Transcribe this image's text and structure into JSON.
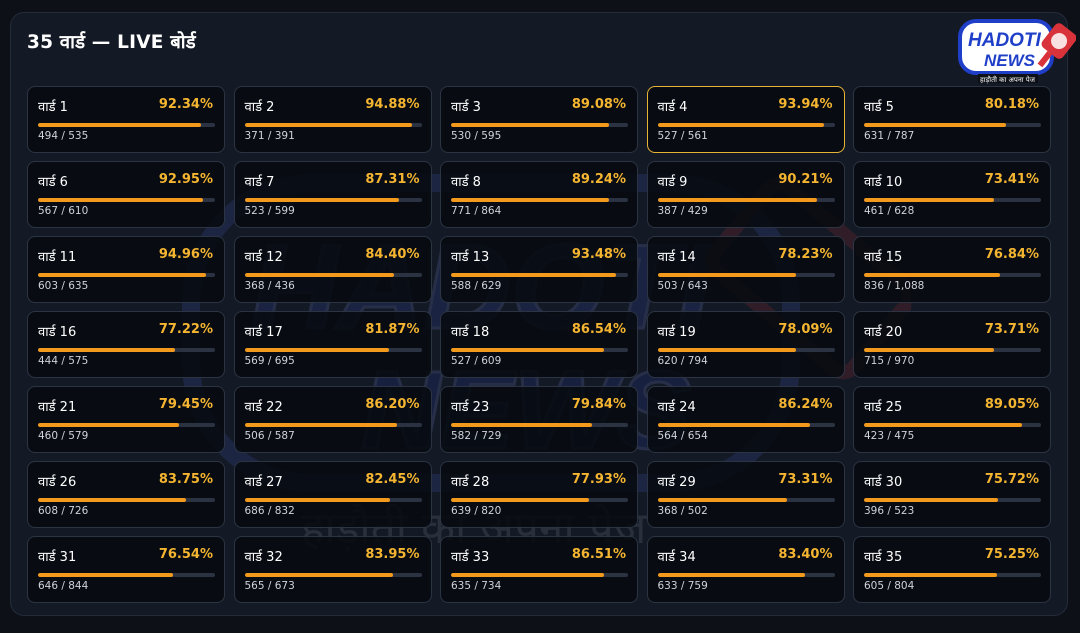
{
  "header": {
    "title": "35 वार्ड — LIVE बोर्ड"
  },
  "logo": {
    "name_line1": "HADOTI",
    "name_line2": "NEWS",
    "tagline": "हाड़ौती का अपना पेज"
  },
  "watermark": {
    "line1": "HADOTI",
    "line2": "NEWS",
    "tagline": "हाड़ौती का अपना पेज"
  },
  "colors": {
    "accent": "#f5b531",
    "bar_fill": "#f39a1c",
    "selected_border": "#e8b436"
  },
  "selected_ward": "वार्ड 4",
  "wards": [
    {
      "name": "वार्ड 1",
      "percent": "92.34%",
      "votes": "494 / 535",
      "fill": 0.9234
    },
    {
      "name": "वार्ड 2",
      "percent": "94.88%",
      "votes": "371 / 391",
      "fill": 0.9488
    },
    {
      "name": "वार्ड 3",
      "percent": "89.08%",
      "votes": "530 / 595",
      "fill": 0.8908
    },
    {
      "name": "वार्ड 4",
      "percent": "93.94%",
      "votes": "527 / 561",
      "fill": 0.9394
    },
    {
      "name": "वार्ड 5",
      "percent": "80.18%",
      "votes": "631 / 787",
      "fill": 0.8018
    },
    {
      "name": "वार्ड 6",
      "percent": "92.95%",
      "votes": "567 / 610",
      "fill": 0.9295
    },
    {
      "name": "वार्ड 7",
      "percent": "87.31%",
      "votes": "523 / 599",
      "fill": 0.8731
    },
    {
      "name": "वार्ड 8",
      "percent": "89.24%",
      "votes": "771 / 864",
      "fill": 0.8924
    },
    {
      "name": "वार्ड 9",
      "percent": "90.21%",
      "votes": "387 / 429",
      "fill": 0.9021
    },
    {
      "name": "वार्ड 10",
      "percent": "73.41%",
      "votes": "461 / 628",
      "fill": 0.7341
    },
    {
      "name": "वार्ड 11",
      "percent": "94.96%",
      "votes": "603 / 635",
      "fill": 0.9496
    },
    {
      "name": "वार्ड 12",
      "percent": "84.40%",
      "votes": "368 / 436",
      "fill": 0.844
    },
    {
      "name": "वार्ड 13",
      "percent": "93.48%",
      "votes": "588 / 629",
      "fill": 0.9348
    },
    {
      "name": "वार्ड 14",
      "percent": "78.23%",
      "votes": "503 / 643",
      "fill": 0.7823
    },
    {
      "name": "वार्ड 15",
      "percent": "76.84%",
      "votes": "836 / 1,088",
      "fill": 0.7684
    },
    {
      "name": "वार्ड 16",
      "percent": "77.22%",
      "votes": "444 / 575",
      "fill": 0.7722
    },
    {
      "name": "वार्ड 17",
      "percent": "81.87%",
      "votes": "569 / 695",
      "fill": 0.8187
    },
    {
      "name": "वार्ड 18",
      "percent": "86.54%",
      "votes": "527 / 609",
      "fill": 0.8654
    },
    {
      "name": "वार्ड 19",
      "percent": "78.09%",
      "votes": "620 / 794",
      "fill": 0.7809
    },
    {
      "name": "वार्ड 20",
      "percent": "73.71%",
      "votes": "715 / 970",
      "fill": 0.7371
    },
    {
      "name": "वार्ड 21",
      "percent": "79.45%",
      "votes": "460 / 579",
      "fill": 0.7945
    },
    {
      "name": "वार्ड 22",
      "percent": "86.20%",
      "votes": "506 / 587",
      "fill": 0.862
    },
    {
      "name": "वार्ड 23",
      "percent": "79.84%",
      "votes": "582 / 729",
      "fill": 0.7984
    },
    {
      "name": "वार्ड 24",
      "percent": "86.24%",
      "votes": "564 / 654",
      "fill": 0.8624
    },
    {
      "name": "वार्ड 25",
      "percent": "89.05%",
      "votes": "423 / 475",
      "fill": 0.8905
    },
    {
      "name": "वार्ड 26",
      "percent": "83.75%",
      "votes": "608 / 726",
      "fill": 0.8375
    },
    {
      "name": "वार्ड 27",
      "percent": "82.45%",
      "votes": "686 / 832",
      "fill": 0.8245
    },
    {
      "name": "वार्ड 28",
      "percent": "77.93%",
      "votes": "639 / 820",
      "fill": 0.7793
    },
    {
      "name": "वार्ड 29",
      "percent": "73.31%",
      "votes": "368 / 502",
      "fill": 0.7331
    },
    {
      "name": "वार्ड 30",
      "percent": "75.72%",
      "votes": "396 / 523",
      "fill": 0.7572
    },
    {
      "name": "वार्ड 31",
      "percent": "76.54%",
      "votes": "646 / 844",
      "fill": 0.7654
    },
    {
      "name": "वार्ड 32",
      "percent": "83.95%",
      "votes": "565 / 673",
      "fill": 0.8395
    },
    {
      "name": "वार्ड 33",
      "percent": "86.51%",
      "votes": "635 / 734",
      "fill": 0.8651
    },
    {
      "name": "वार्ड 34",
      "percent": "83.40%",
      "votes": "633 / 759",
      "fill": 0.834
    },
    {
      "name": "वार्ड 35",
      "percent": "75.25%",
      "votes": "605 / 804",
      "fill": 0.7525
    }
  ]
}
